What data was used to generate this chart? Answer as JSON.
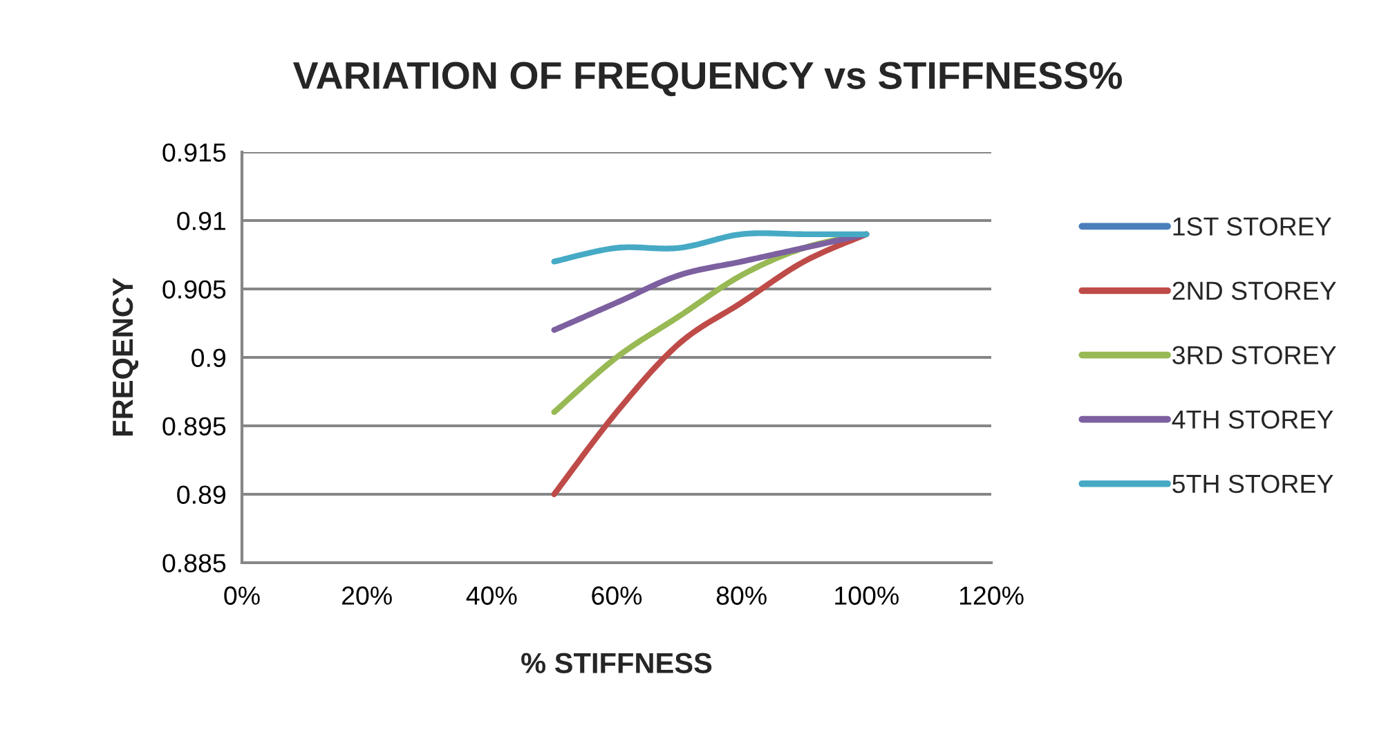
{
  "chart_data": {
    "type": "line",
    "title": "VARIATION OF FREQUENCY vs STIFFNESS%",
    "xlabel": "% STIFFNESS",
    "ylabel": "FREQENCY",
    "x": [
      50,
      60,
      70,
      80,
      90,
      100
    ],
    "xlim": [
      0,
      120
    ],
    "xticks": [
      {
        "value": 0,
        "label": "0%"
      },
      {
        "value": 20,
        "label": "20%"
      },
      {
        "value": 40,
        "label": "40%"
      },
      {
        "value": 60,
        "label": "60%"
      },
      {
        "value": 80,
        "label": "80%"
      },
      {
        "value": 100,
        "label": "100%"
      },
      {
        "value": 120,
        "label": "120%"
      }
    ],
    "ylim": [
      0.885,
      0.915
    ],
    "yticks": [
      0.885,
      0.89,
      0.895,
      0.9,
      0.905,
      0.91,
      0.915
    ],
    "grid": "y",
    "legend": "right",
    "line_style": "solid",
    "series": [
      {
        "name": "1ST STOREY",
        "color": "#4a7ebb",
        "values": [
          null,
          null,
          null,
          null,
          null,
          null
        ]
      },
      {
        "name": "2ND STOREY",
        "color": "#be4b48",
        "values": [
          0.89,
          0.896,
          0.901,
          0.904,
          0.907,
          0.909
        ]
      },
      {
        "name": "3RD STOREY",
        "color": "#98b954",
        "values": [
          0.896,
          0.9,
          0.903,
          0.906,
          0.908,
          0.909
        ]
      },
      {
        "name": "4TH STOREY",
        "color": "#7d60a0",
        "values": [
          0.902,
          0.904,
          0.906,
          0.907,
          0.908,
          0.909
        ]
      },
      {
        "name": "5TH STOREY",
        "color": "#46aac5",
        "values": [
          0.907,
          0.908,
          0.908,
          0.909,
          0.909,
          0.909
        ]
      }
    ]
  }
}
